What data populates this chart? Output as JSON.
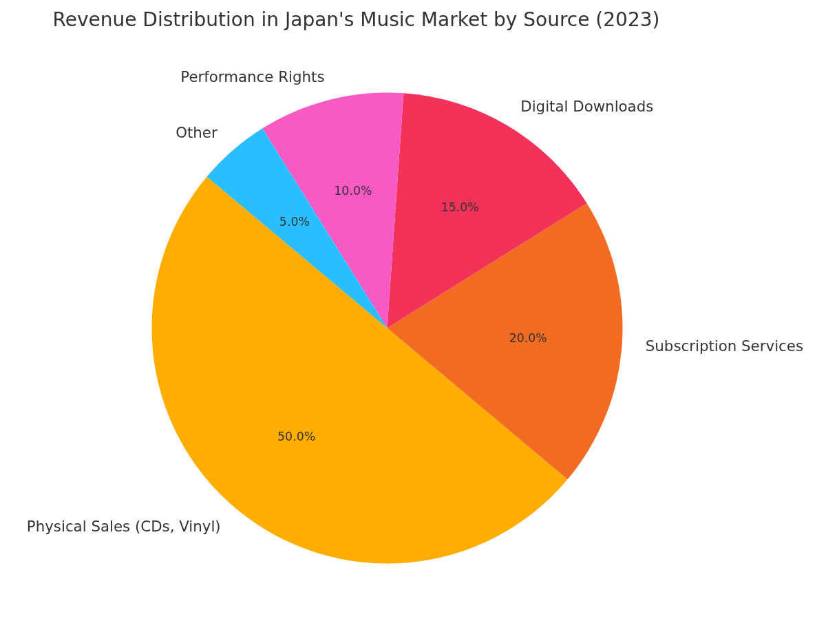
{
  "chart_data": {
    "type": "pie",
    "title": "Revenue Distribution in Japan's Music Market by Source (2023)",
    "categories": [
      "Physical Sales (CDs, Vinyl)",
      "Subscription Services",
      "Digital Downloads",
      "Performance Rights",
      "Other"
    ],
    "values": [
      50,
      20,
      15,
      10,
      5
    ],
    "colors": [
      "#ffad00",
      "#f26b23",
      "#f23259",
      "#f75ac3",
      "#2bbeff"
    ],
    "value_labels": [
      "50.0%",
      "20.0%",
      "15.0%",
      "10.0%",
      "5.0%"
    ]
  }
}
